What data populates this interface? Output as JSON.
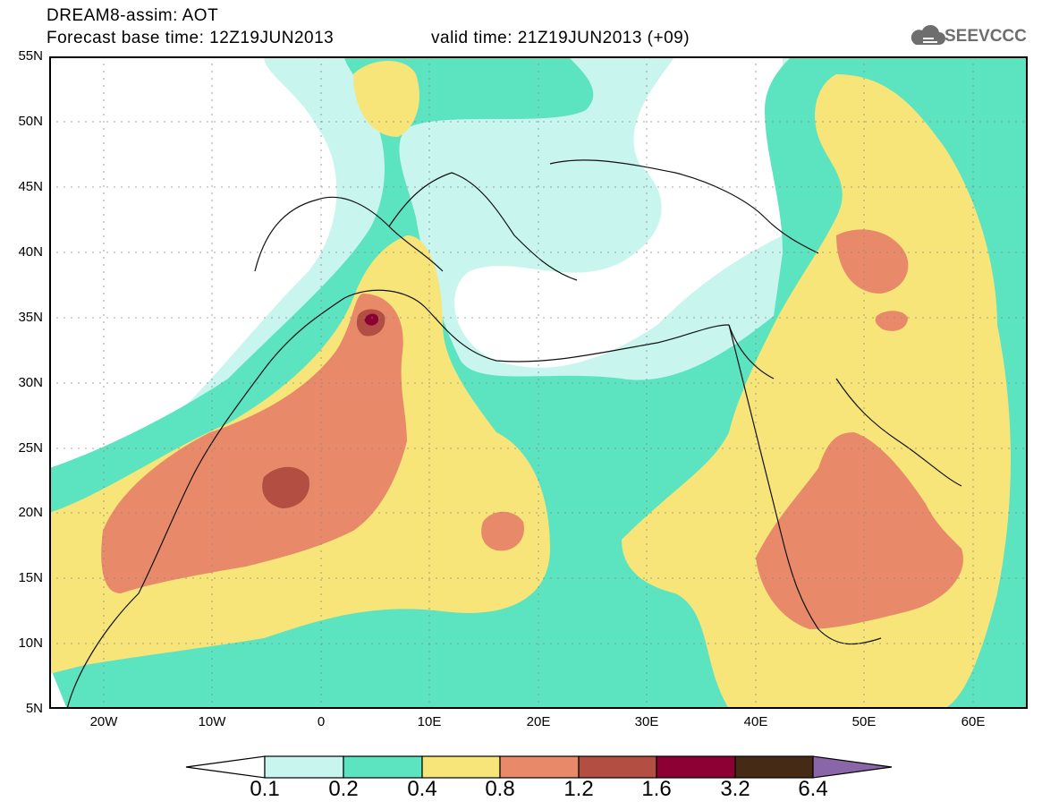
{
  "header": {
    "title": "DREAM8-assim: AOT",
    "base_time": "Forecast base time: 12Z19JUN2013",
    "valid_time": "valid time: 21Z19JUN2013 (+09)"
  },
  "logo": {
    "text": "SEEVCCC",
    "icon": "cloud-icon"
  },
  "map": {
    "lat_labels": [
      "55N",
      "50N",
      "45N",
      "40N",
      "35N",
      "30N",
      "25N",
      "20N",
      "15N",
      "10N",
      "5N"
    ],
    "lon_labels": [
      "20W",
      "10W",
      "0",
      "10E",
      "20E",
      "30E",
      "40E",
      "50E",
      "60E"
    ],
    "extent": {
      "lon_min": -25,
      "lon_max": 65,
      "lat_min": 5,
      "lat_max": 55
    }
  },
  "legend": {
    "values": [
      "0.1",
      "0.2",
      "0.4",
      "0.8",
      "1.2",
      "1.6",
      "3.2",
      "6.4"
    ],
    "colors": [
      "#ffffff",
      "#c8f5ee",
      "#5ce3bf",
      "#f7e57a",
      "#e88a6a",
      "#b34e43",
      "#8c0033",
      "#452a16",
      "#8a66a8"
    ]
  }
}
